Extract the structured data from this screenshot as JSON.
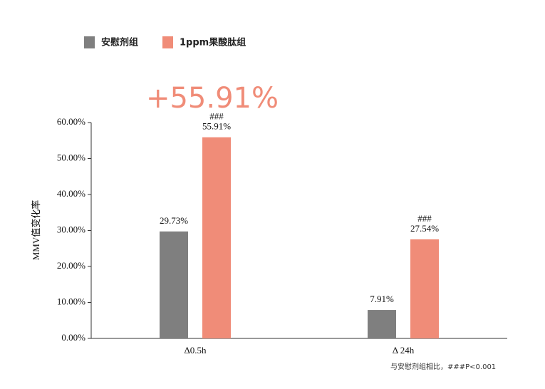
{
  "chart_data": {
    "type": "bar",
    "annotation": "+55.91%",
    "ylabel": "MMV值变化率",
    "footnote": "与安慰剂组相比，###P<0.001",
    "categories": [
      "Δ0.5h",
      "Δ 24h"
    ],
    "series": [
      {
        "name": "安慰剂组",
        "color": "#7f7f7f",
        "values": [
          29.73,
          7.91
        ],
        "value_labels": [
          "29.73%",
          "7.91%"
        ]
      },
      {
        "name": "1ppm果酸肽组",
        "color": "#f08c78",
        "values": [
          55.91,
          27.54
        ],
        "value_labels": [
          "55.91%",
          "27.54%"
        ],
        "significance": [
          "###",
          "###"
        ]
      }
    ],
    "ylim": [
      0,
      60
    ],
    "yticks": [
      {
        "value": 0,
        "label": "0.00%"
      },
      {
        "value": 10,
        "label": "10.00%"
      },
      {
        "value": 20,
        "label": "20.00%"
      },
      {
        "value": 30,
        "label": "30.00%"
      },
      {
        "value": 40,
        "label": "40.00%"
      },
      {
        "value": 50,
        "label": "50.00%"
      },
      {
        "value": 60,
        "label": "60.00%"
      }
    ],
    "grid": false,
    "legend": "top-left"
  }
}
